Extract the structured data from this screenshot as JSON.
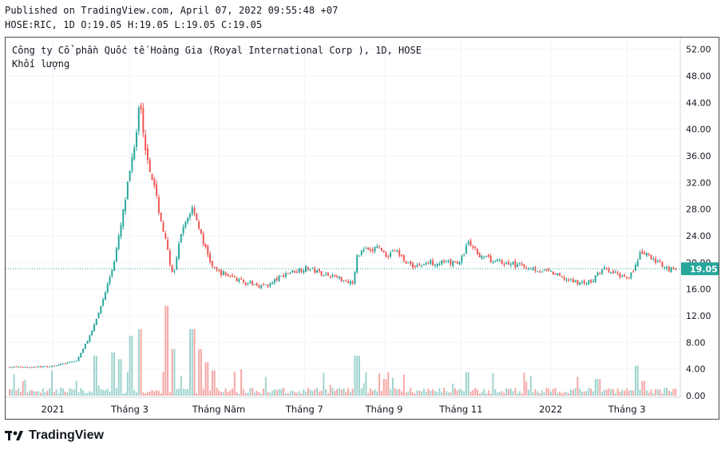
{
  "header": {
    "published": "Published on TradingView.com, April 07, 2022 09:55:48 +07",
    "ohlc": "HOSE:RIC, 1D O:19.05 H:19.05 L:19.05 C:19.05"
  },
  "legend": {
    "title": "Công ty Cổ phần Quốc tế Hoàng Gia (Royal International Corp ), 1D, HOSE",
    "volume_label": "Khối lượng"
  },
  "price_label": "19.05",
  "brand": "TradingView",
  "colors": {
    "up": "#26a69a",
    "down": "#ef5350",
    "grid": "#f0f3fa",
    "price_line": "#26a69a",
    "vol_up": "#9ed3cd",
    "vol_down": "#f5a6a4"
  },
  "chart_data": {
    "type": "candlestick",
    "ylim": [
      0,
      54
    ],
    "y_ticks": [
      "52.00",
      "48.00",
      "44.00",
      "40.00",
      "36.00",
      "32.00",
      "28.00",
      "24.00",
      "20.00",
      "16.00",
      "12.00",
      "8.00",
      "4.00",
      "0.00"
    ],
    "x_ticks": [
      {
        "label": "2021",
        "x": 0.07
      },
      {
        "label": "Tháng 3",
        "x": 0.184
      },
      {
        "label": "Tháng Năm",
        "x": 0.316
      },
      {
        "label": "Tháng 7",
        "x": 0.443
      },
      {
        "label": "Tháng 9",
        "x": 0.561
      },
      {
        "label": "Tháng 11",
        "x": 0.675
      },
      {
        "label": "2022",
        "x": 0.808
      },
      {
        "label": "Tháng 3",
        "x": 0.921
      }
    ],
    "last_price": 19.05,
    "close_path": [
      [
        0.0,
        4.3
      ],
      [
        0.03,
        4.3
      ],
      [
        0.06,
        4.4
      ],
      [
        0.08,
        4.8
      ],
      [
        0.1,
        5.2
      ],
      [
        0.11,
        7.0
      ],
      [
        0.125,
        10.0
      ],
      [
        0.14,
        14.5
      ],
      [
        0.155,
        19.5
      ],
      [
        0.165,
        24.5
      ],
      [
        0.175,
        30.5
      ],
      [
        0.183,
        35.5
      ],
      [
        0.19,
        40.0
      ],
      [
        0.195,
        46.0
      ],
      [
        0.2,
        39.0
      ],
      [
        0.205,
        36.5
      ],
      [
        0.215,
        32.0
      ],
      [
        0.225,
        27.0
      ],
      [
        0.235,
        22.5
      ],
      [
        0.245,
        17.5
      ],
      [
        0.255,
        23.5
      ],
      [
        0.265,
        26.5
      ],
      [
        0.275,
        28.5
      ],
      [
        0.285,
        24.5
      ],
      [
        0.295,
        21.5
      ],
      [
        0.305,
        19.0
      ],
      [
        0.315,
        18.5
      ],
      [
        0.33,
        18.0
      ],
      [
        0.345,
        17.2
      ],
      [
        0.36,
        16.8
      ],
      [
        0.375,
        16.5
      ],
      [
        0.39,
        16.7
      ],
      [
        0.4,
        17.5
      ],
      [
        0.415,
        18.4
      ],
      [
        0.43,
        18.8
      ],
      [
        0.445,
        19.2
      ],
      [
        0.46,
        18.6
      ],
      [
        0.475,
        18.2
      ],
      [
        0.49,
        17.8
      ],
      [
        0.505,
        17.2
      ],
      [
        0.515,
        17.0
      ],
      [
        0.52,
        21.0
      ],
      [
        0.53,
        22.0
      ],
      [
        0.54,
        21.5
      ],
      [
        0.55,
        22.5
      ],
      [
        0.565,
        21.0
      ],
      [
        0.575,
        22.0
      ],
      [
        0.59,
        20.5
      ],
      [
        0.6,
        19.5
      ],
      [
        0.615,
        19.6
      ],
      [
        0.63,
        20.0
      ],
      [
        0.645,
        20.0
      ],
      [
        0.66,
        19.8
      ],
      [
        0.675,
        20.2
      ],
      [
        0.685,
        23.0
      ],
      [
        0.695,
        22.0
      ],
      [
        0.705,
        21.0
      ],
      [
        0.72,
        20.3
      ],
      [
        0.735,
        20.0
      ],
      [
        0.75,
        19.8
      ],
      [
        0.765,
        19.5
      ],
      [
        0.78,
        19.2
      ],
      [
        0.795,
        18.8
      ],
      [
        0.81,
        18.5
      ],
      [
        0.825,
        17.8
      ],
      [
        0.84,
        17.2
      ],
      [
        0.855,
        17.0
      ],
      [
        0.87,
        17.0
      ],
      [
        0.88,
        18.2
      ],
      [
        0.89,
        19.0
      ],
      [
        0.9,
        18.5
      ],
      [
        0.915,
        18.0
      ],
      [
        0.925,
        17.8
      ],
      [
        0.935,
        19.0
      ],
      [
        0.945,
        21.5
      ],
      [
        0.955,
        21.0
      ],
      [
        0.965,
        20.3
      ],
      [
        0.975,
        19.8
      ],
      [
        0.985,
        19.05
      ]
    ],
    "volume_spikes": [
      [
        0.13,
        6.0
      ],
      [
        0.155,
        6.5
      ],
      [
        0.165,
        5.5
      ],
      [
        0.182,
        9.0
      ],
      [
        0.195,
        10.0
      ],
      [
        0.235,
        13.5
      ],
      [
        0.245,
        7.0
      ],
      [
        0.27,
        10.0
      ],
      [
        0.275,
        10.0
      ],
      [
        0.285,
        7.0
      ],
      [
        0.295,
        5.0
      ],
      [
        0.305,
        3.8
      ],
      [
        0.52,
        6.0
      ],
      [
        0.53,
        3.5
      ],
      [
        0.56,
        2.5
      ],
      [
        0.685,
        3.5
      ],
      [
        0.88,
        2.5
      ],
      [
        0.94,
        4.5
      ],
      [
        0.95,
        2.2
      ]
    ]
  }
}
